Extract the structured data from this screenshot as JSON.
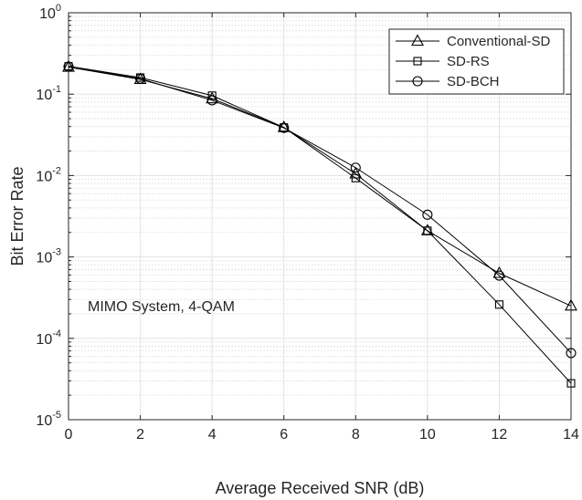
{
  "chart_data": {
    "type": "line",
    "title": "",
    "xlabel": "Average Received SNR (dB)",
    "ylabel": "Bit Error Rate",
    "xlim": [
      0,
      14
    ],
    "ylim": [
      1e-05,
      1
    ],
    "yscale": "log",
    "grid": true,
    "minor_grid": true,
    "legend_position": "top-right",
    "x_ticks": [
      "0",
      "2",
      "4",
      "6",
      "8",
      "10",
      "12",
      "14"
    ],
    "y_ticks": [
      {
        "base": "10",
        "exp": "0"
      },
      {
        "base": "10",
        "exp": "-1"
      },
      {
        "base": "10",
        "exp": "-2"
      },
      {
        "base": "10",
        "exp": "-3"
      },
      {
        "base": "10",
        "exp": "-4"
      },
      {
        "base": "10",
        "exp": "-5"
      }
    ],
    "annotation": "MIMO System, 4-QAM",
    "x": [
      0,
      2,
      4,
      6,
      8,
      10,
      12,
      14
    ],
    "series": [
      {
        "name": "Conventional-SD",
        "marker": "triangle",
        "color": "#000000",
        "values": [
          0.215,
          0.152,
          0.088,
          0.039,
          0.0105,
          0.0021,
          0.00063,
          0.00025
        ]
      },
      {
        "name": "SD-RS",
        "marker": "square",
        "color": "#000000",
        "values": [
          0.22,
          0.16,
          0.096,
          0.039,
          0.0093,
          0.0021,
          0.00026,
          2.8e-05
        ]
      },
      {
        "name": "SD-BCH",
        "marker": "circle",
        "color": "#000000",
        "values": [
          0.218,
          0.155,
          0.084,
          0.0385,
          0.0125,
          0.0033,
          0.00059,
          6.6e-05
        ]
      }
    ]
  }
}
